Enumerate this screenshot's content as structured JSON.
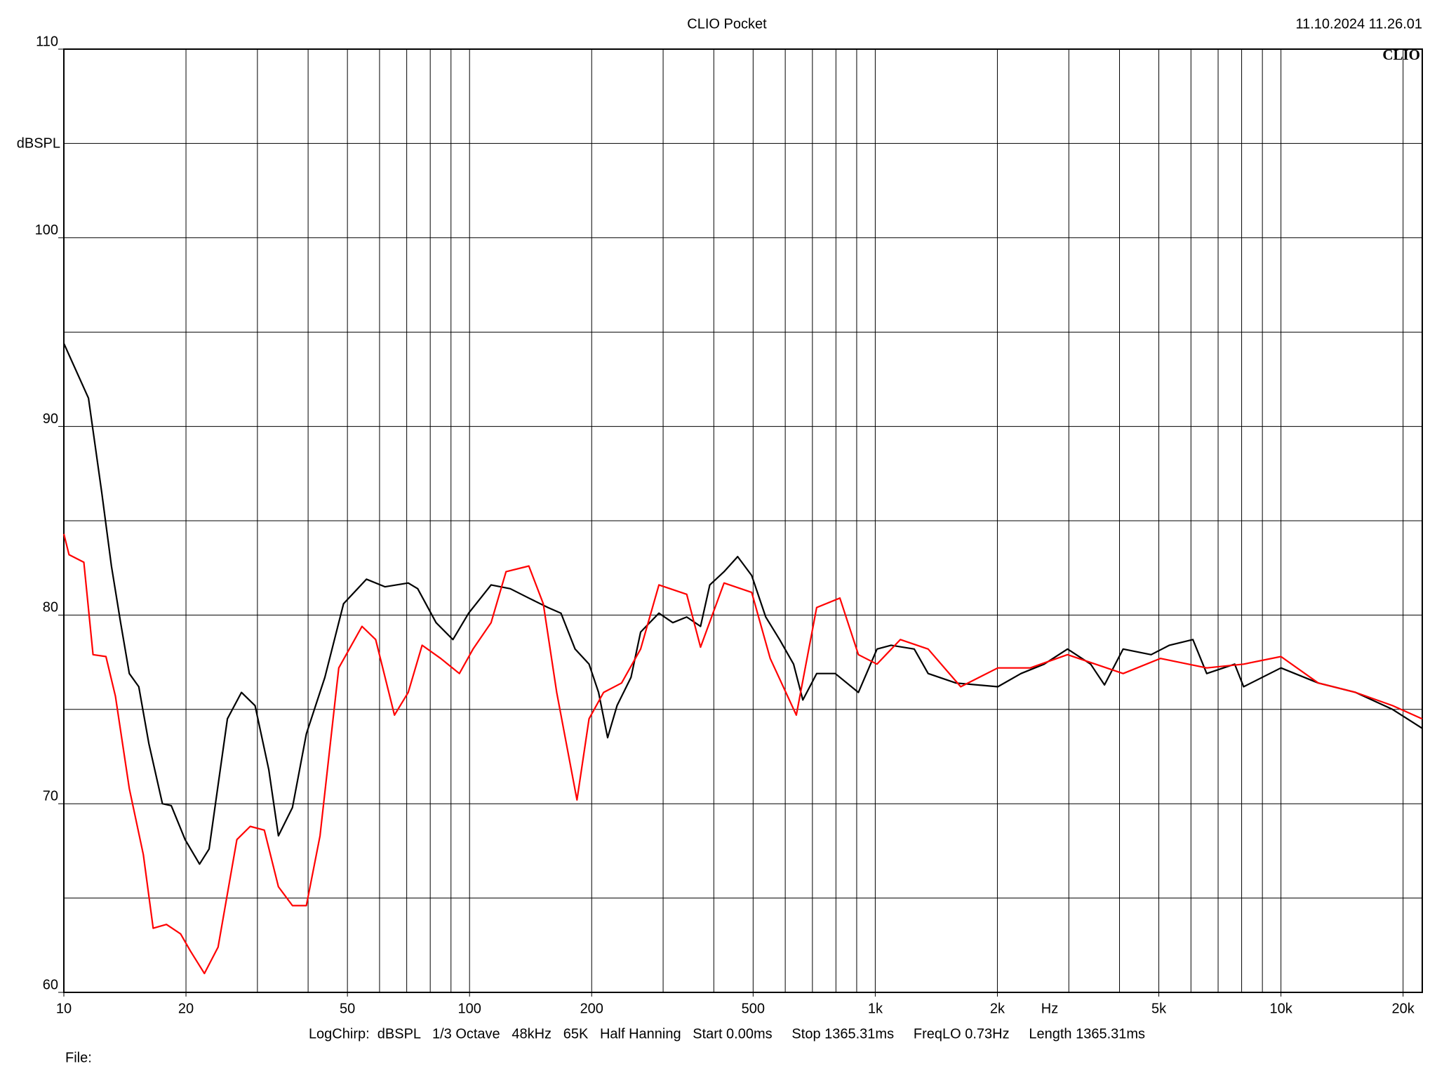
{
  "chart_data": {
    "type": "line",
    "title": "CLIO Pocket",
    "timestamp": "11.10.2024 11.26.01",
    "logo": "CLIO",
    "y_label": "dBSPL",
    "x_unit": "Hz",
    "footer": "LogChirp:  dBSPL   1/3 Octave   48kHz   65K   Half Hanning   Start 0.00ms     Stop 1365.31ms     FreqLO 0.73Hz     Length 1365.31ms",
    "file_label": "File:",
    "log_x": true,
    "grid": true,
    "xlim": [
      10,
      22300
    ],
    "ylim": [
      60,
      110
    ],
    "xticks": [
      10,
      20,
      50,
      100,
      200,
      500,
      {
        "value": 1000,
        "label": "1k"
      },
      {
        "value": 2000,
        "label": "2k"
      },
      {
        "value": 5000,
        "label": "5k"
      },
      {
        "value": 10000,
        "label": "10k"
      },
      {
        "value": 20000,
        "label": "20k"
      }
    ],
    "xgrid": [
      10,
      20,
      30,
      40,
      50,
      60,
      70,
      80,
      90,
      100,
      200,
      300,
      400,
      500,
      600,
      700,
      800,
      900,
      1000,
      2000,
      3000,
      4000,
      5000,
      6000,
      7000,
      8000,
      9000,
      10000,
      20000
    ],
    "yticks": [
      60,
      70,
      80,
      90,
      100,
      110
    ],
    "ygrid": [
      60,
      65,
      70,
      75,
      80,
      85,
      90,
      95,
      100,
      105,
      110
    ],
    "series": [
      {
        "color": "#000000",
        "x": [
          10,
          11.5,
          12.4,
          13.1,
          13.8,
          14.5,
          15.3,
          16.2,
          17.5,
          18.4,
          19.9,
          21.6,
          22.8,
          25.3,
          27.4,
          29.6,
          32.0,
          33.8,
          36.6,
          39.6,
          44.0,
          48.9,
          55.7,
          61.9,
          70.6,
          74.5,
          82.7,
          91.0,
          99.5,
          113,
          126,
          140,
          156,
          168,
          182,
          197,
          208,
          219,
          231,
          250,
          264,
          293,
          317,
          343,
          371,
          391,
          424,
          458,
          496,
          537,
          581,
          629,
          663,
          717,
          797,
          909,
          1010,
          1094,
          1248,
          1350,
          1581,
          2005,
          2287,
          2608,
          2978,
          3396,
          3673,
          4083,
          4786,
          5309,
          6067,
          6561,
          7691,
          8091,
          10000,
          12360,
          15276,
          18836,
          22284
        ],
        "values": [
          94.4,
          91.5,
          86.5,
          82.6,
          79.6,
          76.9,
          76.2,
          73.2,
          70.0,
          69.9,
          68.1,
          66.8,
          67.6,
          74.5,
          75.9,
          75.2,
          71.8,
          68.3,
          69.8,
          73.7,
          76.7,
          80.6,
          81.9,
          81.5,
          81.7,
          81.4,
          79.6,
          78.7,
          80.1,
          81.6,
          81.4,
          80.9,
          80.4,
          80.1,
          78.2,
          77.4,
          75.9,
          73.5,
          75.2,
          76.7,
          79.1,
          80.1,
          79.6,
          79.9,
          79.4,
          81.6,
          82.3,
          83.1,
          82.1,
          79.9,
          78.7,
          77.4,
          75.5,
          76.9,
          76.9,
          75.9,
          78.2,
          78.4,
          78.2,
          76.9,
          76.4,
          76.2,
          76.9,
          77.4,
          78.2,
          77.4,
          76.3,
          78.2,
          77.9,
          78.4,
          78.7,
          76.9,
          77.4,
          76.2,
          77.2,
          76.4,
          75.9,
          75.0,
          74.0
        ]
      },
      {
        "color": "#ff0000",
        "x": [
          10,
          10.3,
          11.2,
          11.8,
          12.7,
          13.4,
          14.5,
          15.7,
          16.6,
          17.9,
          19.4,
          20.5,
          22.2,
          24.0,
          26.7,
          28.8,
          31.2,
          33.8,
          36.6,
          39.6,
          42.8,
          47.6,
          54.3,
          58.7,
          65.3,
          70.6,
          76.4,
          84.9,
          94.4,
          102,
          113,
          123,
          140,
          152,
          164,
          184,
          197,
          214,
          237,
          264,
          293,
          343,
          371,
          424,
          496,
          551,
          639,
          717,
          818,
          909,
          1010,
          1153,
          1350,
          1624,
          2005,
          2410,
          2978,
          4083,
          5047,
          6561,
          8091,
          10000,
          12360,
          15276,
          18836,
          22284
        ],
        "values": [
          84.3,
          83.2,
          82.8,
          77.9,
          77.8,
          75.7,
          70.8,
          67.3,
          63.4,
          63.6,
          63.1,
          62.2,
          61.0,
          62.4,
          68.1,
          68.8,
          68.6,
          65.6,
          64.6,
          64.6,
          68.3,
          77.2,
          79.4,
          78.7,
          74.7,
          75.9,
          78.4,
          77.7,
          76.9,
          78.2,
          79.6,
          82.3,
          82.6,
          80.6,
          75.9,
          70.2,
          74.5,
          75.9,
          76.4,
          78.2,
          81.6,
          81.1,
          78.3,
          81.7,
          81.2,
          77.7,
          74.7,
          80.4,
          80.9,
          77.9,
          77.4,
          78.7,
          78.2,
          76.2,
          77.2,
          77.2,
          77.9,
          76.9,
          77.7,
          77.2,
          77.4,
          77.8,
          76.4,
          75.9,
          75.2,
          74.5
        ]
      }
    ]
  }
}
